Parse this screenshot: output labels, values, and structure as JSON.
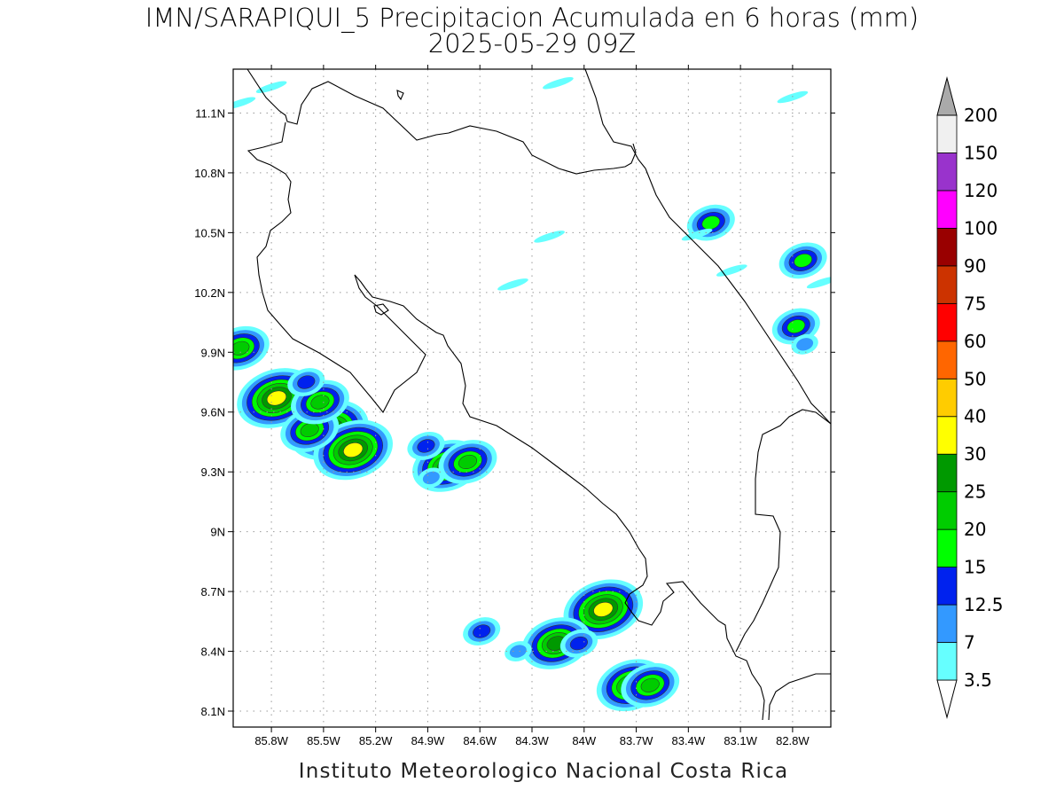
{
  "title": {
    "line1": "IMN/SARAPIQUI_5 Precipitacion Acumulada en 6 horas (mm)",
    "line2": "2025-05-29 09Z"
  },
  "footer": "Instituto Meteorologico Nacional Costa Rica",
  "map": {
    "lon_range": [
      -86.02,
      -82.58
    ],
    "lat_range": [
      8.02,
      11.32
    ],
    "lon_ticks": [
      {
        "value": -85.8,
        "label": "85.8W"
      },
      {
        "value": -85.5,
        "label": "85.5W"
      },
      {
        "value": -85.2,
        "label": "85.2W"
      },
      {
        "value": -84.9,
        "label": "84.9W"
      },
      {
        "value": -84.6,
        "label": "84.6W"
      },
      {
        "value": -84.3,
        "label": "84.3W"
      },
      {
        "value": -84.0,
        "label": "84W"
      },
      {
        "value": -83.7,
        "label": "83.7W"
      },
      {
        "value": -83.4,
        "label": "83.4W"
      },
      {
        "value": -83.1,
        "label": "83.1W"
      },
      {
        "value": -82.8,
        "label": "82.8W"
      }
    ],
    "lat_ticks": [
      {
        "value": 8.1,
        "label": "8.1N"
      },
      {
        "value": 8.4,
        "label": "8.4N"
      },
      {
        "value": 8.7,
        "label": "8.7N"
      },
      {
        "value": 9.0,
        "label": "9N"
      },
      {
        "value": 9.3,
        "label": "9.3N"
      },
      {
        "value": 9.6,
        "label": "9.6N"
      },
      {
        "value": 9.9,
        "label": "9.9N"
      },
      {
        "value": 10.2,
        "label": "10.2N"
      },
      {
        "value": 10.5,
        "label": "10.5N"
      },
      {
        "value": 10.8,
        "label": "10.8N"
      },
      {
        "value": 11.1,
        "label": "11.1N"
      }
    ],
    "grid": "dotted"
  },
  "colorbar": {
    "levels": [
      {
        "label": "3.5",
        "color": "#66ffff"
      },
      {
        "label": "7",
        "color": "#3399ff"
      },
      {
        "label": "12.5",
        "color": "#0022ee"
      },
      {
        "label": "15",
        "color": "#00ff00"
      },
      {
        "label": "20",
        "color": "#00cc00"
      },
      {
        "label": "25",
        "color": "#009900"
      },
      {
        "label": "30",
        "color": "#ffff00"
      },
      {
        "label": "40",
        "color": "#ffcc00"
      },
      {
        "label": "50",
        "color": "#ff6600"
      },
      {
        "label": "60",
        "color": "#ff0000"
      },
      {
        "label": "75",
        "color": "#cc3300"
      },
      {
        "label": "90",
        "color": "#990000"
      },
      {
        "label": "100",
        "color": "#ff00ff"
      },
      {
        "label": "120",
        "color": "#9933cc"
      },
      {
        "label": "150",
        "color": "#f0f0f0"
      },
      {
        "label": "200",
        "color": "#aaaaaa"
      }
    ]
  },
  "precip_cells": [
    {
      "lon": -85.98,
      "lat": 9.92,
      "level": 4
    },
    {
      "lon": -85.77,
      "lat": 9.67,
      "level": 6
    },
    {
      "lon": -85.47,
      "lat": 9.51,
      "level": 6
    },
    {
      "lon": -85.33,
      "lat": 9.41,
      "level": 6
    },
    {
      "lon": -85.58,
      "lat": 9.51,
      "level": 4
    },
    {
      "lon": -85.52,
      "lat": 9.65,
      "level": 4
    },
    {
      "lon": -85.6,
      "lat": 9.75,
      "level": 2
    },
    {
      "lon": -84.79,
      "lat": 9.33,
      "level": 5
    },
    {
      "lon": -84.67,
      "lat": 9.35,
      "level": 4
    },
    {
      "lon": -84.91,
      "lat": 9.43,
      "level": 2
    },
    {
      "lon": -84.88,
      "lat": 9.27,
      "level": 1
    },
    {
      "lon": -83.89,
      "lat": 8.61,
      "level": 6
    },
    {
      "lon": -84.16,
      "lat": 8.44,
      "level": 5
    },
    {
      "lon": -84.03,
      "lat": 8.44,
      "level": 2
    },
    {
      "lon": -83.73,
      "lat": 8.23,
      "level": 5
    },
    {
      "lon": -83.62,
      "lat": 8.23,
      "level": 4
    },
    {
      "lon": -84.59,
      "lat": 8.5,
      "level": 2
    },
    {
      "lon": -84.38,
      "lat": 8.4,
      "level": 1
    },
    {
      "lon": -83.27,
      "lat": 10.55,
      "level": 3
    },
    {
      "lon": -82.74,
      "lat": 10.36,
      "level": 3
    },
    {
      "lon": -82.78,
      "lat": 10.03,
      "level": 3
    },
    {
      "lon": -82.73,
      "lat": 9.94,
      "level": 1
    },
    {
      "lon": -84.2,
      "lat": 10.48,
      "level": 0
    },
    {
      "lon": -83.35,
      "lat": 10.49,
      "level": 0
    },
    {
      "lon": -85.8,
      "lat": 11.23,
      "level": 0
    },
    {
      "lon": -82.8,
      "lat": 11.18,
      "level": 0
    },
    {
      "lon": -82.63,
      "lat": 10.25,
      "level": 0
    },
    {
      "lon": -84.15,
      "lat": 11.25,
      "level": 0
    },
    {
      "lon": -83.15,
      "lat": 10.31,
      "level": 0
    },
    {
      "lon": -84.41,
      "lat": 10.24,
      "level": 0
    },
    {
      "lon": -85.98,
      "lat": 11.15,
      "level": 0
    }
  ]
}
